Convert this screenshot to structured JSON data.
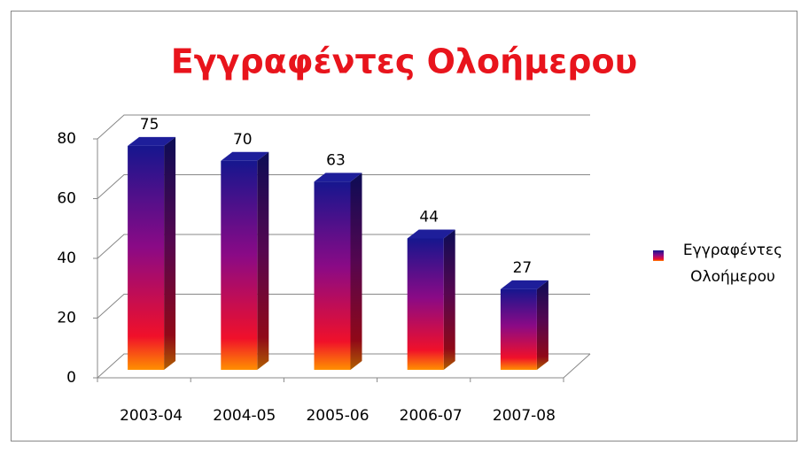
{
  "chart_data": {
    "type": "bar3d",
    "title": "Εγγραφέντες Ολοήμερου",
    "categories": [
      "2003-04",
      "2004-05",
      "2005-06",
      "2006-07",
      "2007-08"
    ],
    "series": [
      {
        "name": "Εγγραφέντες Ολοήμερου",
        "color": "#1a1a8c",
        "values": [
          75,
          70,
          63,
          44,
          27
        ]
      }
    ],
    "ylim": [
      0,
      80
    ],
    "yticks": [
      0,
      20,
      40,
      60,
      80
    ],
    "grid": true,
    "legend": "right",
    "data_labels": true
  }
}
